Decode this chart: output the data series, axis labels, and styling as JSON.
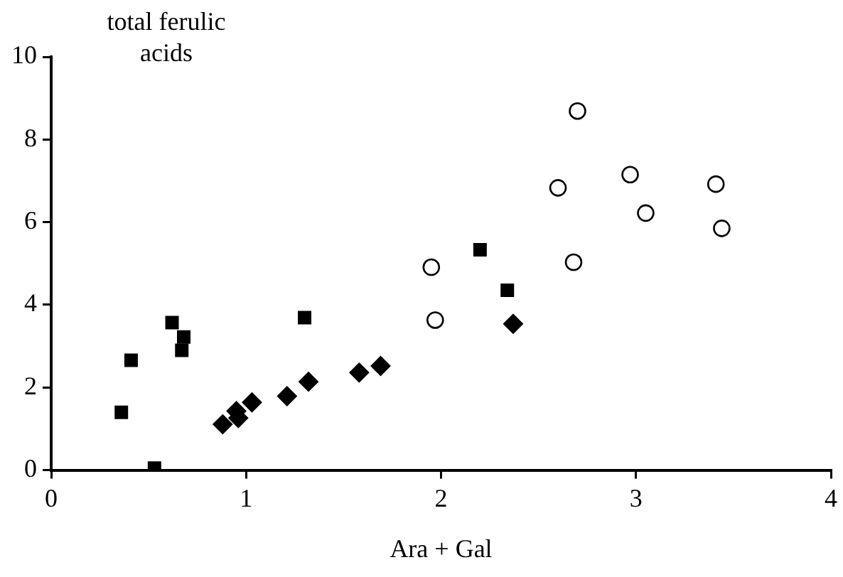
{
  "chart_data": {
    "type": "scatter",
    "xlabel": "Ara + Gal",
    "ylabel": "total ferulic acids",
    "xlim": [
      0,
      4
    ],
    "xticks": [
      0,
      1,
      2,
      3,
      4
    ],
    "ylim": [
      0,
      10
    ],
    "yticks": [
      0,
      2,
      4,
      6,
      8,
      10
    ],
    "grid": false,
    "legend": false,
    "series": [
      {
        "color": "#000000",
        "marker": "square",
        "x": [
          0.36,
          0.41,
          0.53,
          0.62,
          0.68,
          0.67,
          1.3,
          2.2,
          2.34
        ],
        "values": [
          1.4,
          2.66,
          0.05,
          3.57,
          3.22,
          2.9,
          3.69,
          5.33,
          4.35
        ]
      },
      {
        "color": "#000000",
        "marker": "diamond",
        "x": [
          0.88,
          0.95,
          0.96,
          1.03,
          1.21,
          1.32,
          1.58,
          1.69,
          2.37
        ],
        "values": [
          1.11,
          1.43,
          1.26,
          1.64,
          1.79,
          2.14,
          2.36,
          2.52,
          3.54
        ]
      },
      {
        "color": "#000000",
        "marker": "circle",
        "x": [
          1.97,
          2.7,
          2.6,
          2.97,
          3.41,
          3.05,
          3.44,
          1.95,
          2.68
        ],
        "values": [
          3.63,
          8.69,
          6.83,
          7.15,
          6.92,
          6.22,
          5.85,
          4.91,
          5.03
        ]
      }
    ]
  }
}
